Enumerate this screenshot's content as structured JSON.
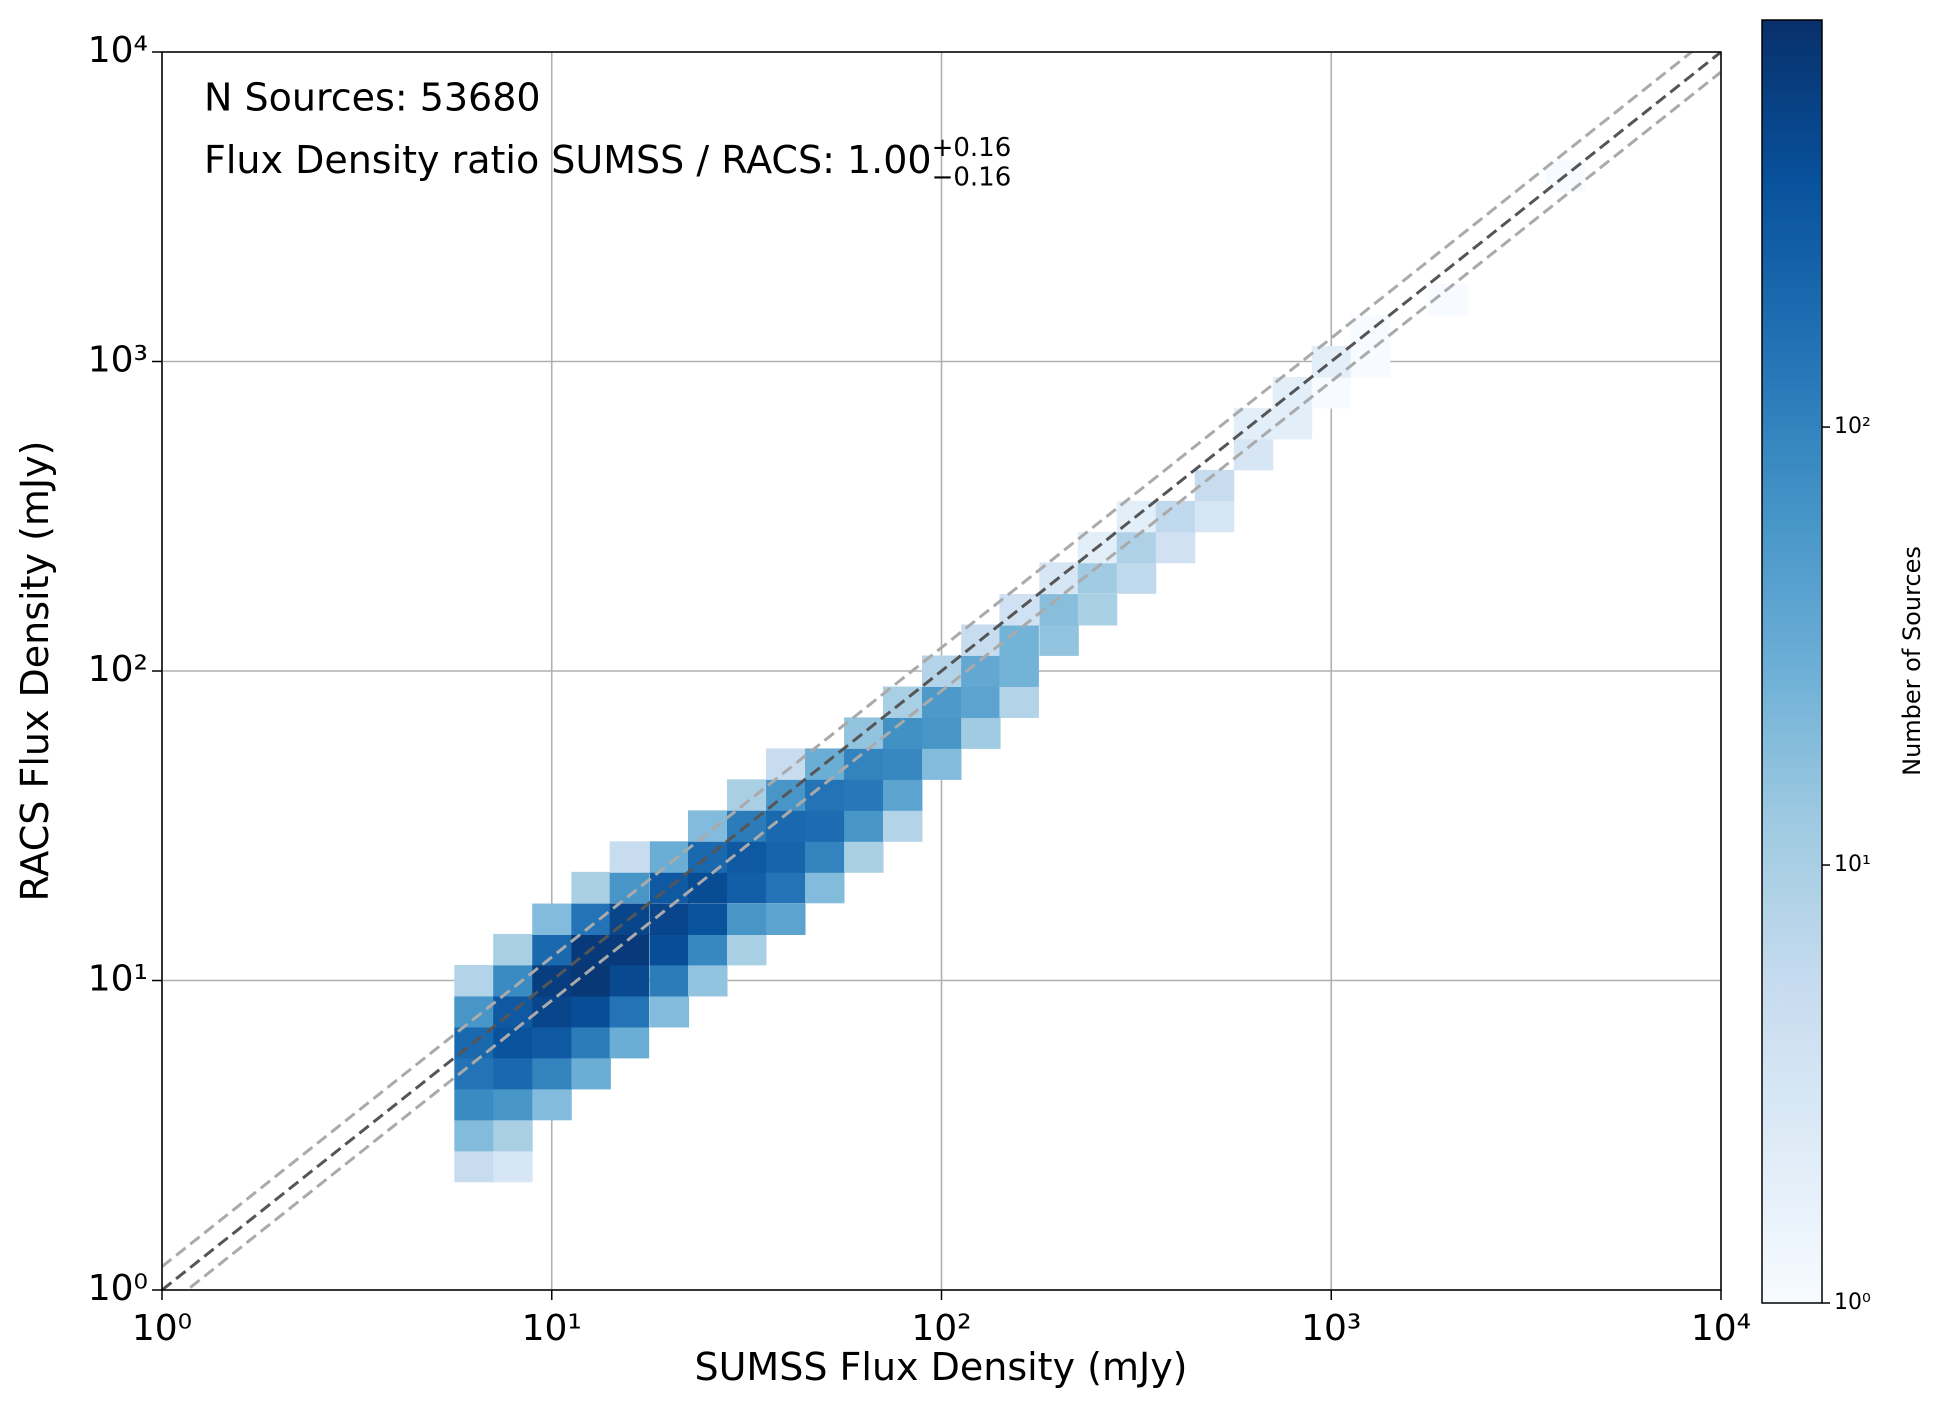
{
  "chart_data": {
    "type": "hist2d",
    "annotation": "N Sources: 53680",
    "ratio_text": "Flux Density ratio SUMSS / RACS: 1.00",
    "ratio_plus": "+0.16",
    "ratio_minus": "−0.16",
    "xlabel": "SUMSS Flux Density (mJy)",
    "ylabel": "RACS Flux Density (mJy)",
    "colorbar_label": "Number of Sources",
    "log_x": true,
    "log_y": true,
    "grid": true,
    "colormap": "Blues",
    "xlim": [
      1,
      10000
    ],
    "ylim": [
      1,
      10000
    ],
    "clim": [
      1,
      850
    ],
    "xticks": [
      {
        "value": 1,
        "label": "10⁰"
      },
      {
        "value": 10,
        "label": "10¹"
      },
      {
        "value": 100,
        "label": "10²"
      },
      {
        "value": 1000,
        "label": "10³"
      },
      {
        "value": 10000,
        "label": "10⁴"
      }
    ],
    "yticks": [
      {
        "value": 1,
        "label": "10⁰"
      },
      {
        "value": 10,
        "label": "10¹"
      },
      {
        "value": 100,
        "label": "10²"
      },
      {
        "value": 1000,
        "label": "10³"
      },
      {
        "value": 10000,
        "label": "10⁴"
      }
    ],
    "cticks": [
      {
        "value": 1,
        "label": "10⁰"
      },
      {
        "value": 10,
        "label": "10¹"
      },
      {
        "value": 100,
        "label": "10²"
      }
    ],
    "reference_lines": [
      {
        "slope": 1.19,
        "color": "#aaaaaa"
      },
      {
        "slope": 0.862,
        "color": "#aaaaaa"
      },
      {
        "slope": 1,
        "color": "#555555"
      }
    ],
    "x": [
      6.31,
      6.31,
      6.31,
      6.31,
      6.31,
      6.31,
      6.31,
      7.94,
      7.94,
      7.94,
      7.94,
      7.94,
      7.94,
      7.94,
      7.94,
      10,
      10,
      10,
      10,
      10,
      10,
      10,
      12.6,
      12.6,
      12.6,
      12.6,
      12.6,
      12.6,
      12.6,
      15.8,
      15.8,
      15.8,
      15.8,
      15.8,
      15.8,
      15.8,
      20,
      20,
      20,
      20,
      20,
      20,
      25.1,
      25.1,
      25.1,
      25.1,
      25.1,
      25.1,
      31.6,
      31.6,
      31.6,
      31.6,
      31.6,
      31.6,
      39.8,
      39.8,
      39.8,
      39.8,
      39.8,
      39.8,
      50.1,
      50.1,
      50.1,
      50.1,
      50.1,
      63.1,
      63.1,
      63.1,
      63.1,
      63.1,
      79.4,
      79.4,
      79.4,
      79.4,
      79.4,
      100,
      100,
      100,
      100,
      126,
      126,
      126,
      126,
      158,
      158,
      158,
      158,
      200,
      200,
      200,
      251,
      251,
      251,
      316,
      316,
      316,
      398,
      398,
      501,
      501,
      631,
      631,
      794,
      794,
      1000,
      1000,
      1259,
      1259,
      1995,
      3981
    ],
    "y": [
      2.51,
      3.16,
      3.98,
      5.01,
      6.31,
      7.94,
      10,
      2.51,
      3.16,
      3.98,
      5.01,
      6.31,
      7.94,
      10,
      12.6,
      3.98,
      5.01,
      6.31,
      7.94,
      10,
      12.6,
      15.8,
      5.01,
      6.31,
      7.94,
      10,
      12.6,
      15.8,
      20,
      6.31,
      7.94,
      10,
      12.6,
      15.8,
      20,
      25.1,
      7.94,
      10,
      12.6,
      15.8,
      20,
      25.1,
      10,
      12.6,
      15.8,
      20,
      25.1,
      31.6,
      12.6,
      15.8,
      20,
      25.1,
      31.6,
      39.8,
      15.8,
      20,
      25.1,
      31.6,
      39.8,
      50.1,
      20,
      25.1,
      31.6,
      39.8,
      50.1,
      25.1,
      31.6,
      39.8,
      50.1,
      63.1,
      31.6,
      39.8,
      50.1,
      63.1,
      79.4,
      50.1,
      63.1,
      79.4,
      100,
      63.1,
      79.4,
      100,
      126,
      79.4,
      100,
      126,
      158,
      126,
      158,
      200,
      158,
      200,
      251,
      200,
      251,
      316,
      251,
      316,
      316,
      398,
      501,
      631,
      631,
      794,
      794,
      1000,
      1000,
      1259,
      1585,
      3981
    ],
    "counts": [
      5,
      20,
      80,
      150,
      200,
      60,
      8,
      3,
      10,
      60,
      200,
      350,
      300,
      80,
      10,
      20,
      100,
      300,
      500,
      600,
      200,
      20,
      30,
      120,
      400,
      700,
      650,
      150,
      10,
      30,
      150,
      450,
      650,
      500,
      60,
      5,
      20,
      120,
      400,
      500,
      300,
      30,
      15,
      90,
      350,
      420,
      200,
      20,
      10,
      60,
      250,
      300,
      120,
      10,
      40,
      150,
      220,
      200,
      60,
      5,
      20,
      100,
      180,
      150,
      30,
      10,
      60,
      130,
      100,
      15,
      8,
      40,
      90,
      70,
      10,
      20,
      60,
      55,
      8,
      12,
      40,
      35,
      5,
      8,
      25,
      25,
      4,
      15,
      18,
      3,
      10,
      12,
      2,
      6,
      9,
      2,
      4,
      6,
      3,
      5,
      3,
      2,
      2,
      2,
      1,
      2,
      1,
      1,
      1,
      1
    ]
  }
}
